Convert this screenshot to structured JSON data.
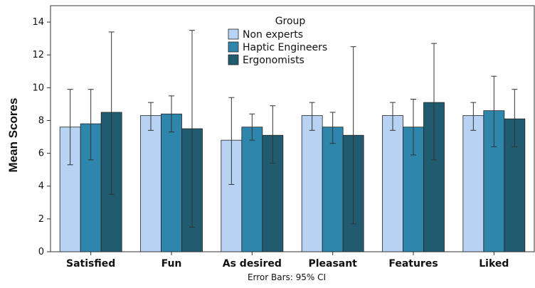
{
  "chart_data": {
    "type": "bar",
    "ylabel": "Mean Scores",
    "xlabel": "",
    "ylim": [
      0,
      15
    ],
    "yticks": [
      0,
      2,
      4,
      6,
      8,
      10,
      12,
      14
    ],
    "grid": false,
    "categories": [
      "Satisfied",
      "Fun",
      "As desired",
      "Pleasant",
      "Features",
      "Liked"
    ],
    "legend": {
      "title": "Group",
      "placement": "top-center"
    },
    "footer": "Error Bars: 95% CI",
    "series": [
      {
        "name": "Non experts",
        "color": "#b7d2f2",
        "values": [
          7.6,
          8.3,
          6.8,
          8.3,
          8.3,
          8.3
        ],
        "ci_low": [
          5.3,
          7.4,
          4.1,
          7.4,
          7.4,
          7.4
        ],
        "ci_high": [
          9.9,
          9.1,
          9.4,
          9.1,
          9.1,
          9.1
        ]
      },
      {
        "name": "Haptic Engineers",
        "color": "#2f86ad",
        "values": [
          7.8,
          8.4,
          7.6,
          7.6,
          7.6,
          8.6
        ],
        "ci_low": [
          5.6,
          7.3,
          6.8,
          6.6,
          5.9,
          6.4
        ],
        "ci_high": [
          9.9,
          9.5,
          8.4,
          8.5,
          9.3,
          10.7
        ]
      },
      {
        "name": "Ergonomists",
        "color": "#215b70",
        "values": [
          8.5,
          7.5,
          7.1,
          7.1,
          9.1,
          8.1
        ],
        "ci_low": [
          3.5,
          1.5,
          5.4,
          1.7,
          5.6,
          6.4
        ],
        "ci_high": [
          13.4,
          13.5,
          8.9,
          12.5,
          12.7,
          9.9
        ]
      }
    ]
  }
}
